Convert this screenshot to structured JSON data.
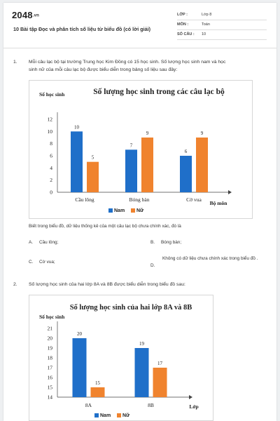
{
  "header": {
    "logo": "2048",
    "logo_suffix": ".vn",
    "title": "10 Bài tập Đọc và phân tích số liệu từ biểu đồ (có lời giải)",
    "meta": [
      {
        "key": "LỚP :",
        "value": "Lớp 8"
      },
      {
        "key": "MÔN :",
        "value": "Toán"
      },
      {
        "key": "SỐ CÂU :",
        "value": "10"
      }
    ]
  },
  "questions": [
    {
      "number": "1.",
      "text_lines": [
        "Mỗi câu lạc bộ tại trường Trung học Kim Đồng có 15 học sinh. Số lượng học sinh nam và học",
        "sinh nữ của mỗi câu lạc bộ được biểu diễn trong bảng số liệu sau đây:"
      ],
      "prompt": "Biết trong biểu đồ, dữ liệu thống kê của một câu lạc bộ chưa chính xác, đó là",
      "options": [
        {
          "label": "A.",
          "text": "Cầu lông;"
        },
        {
          "label": "B.",
          "text": "Bóng bàn;"
        },
        {
          "label": "C.",
          "text": "Cờ vua;"
        },
        {
          "label": "D.",
          "text": "Không có dữ liệu chưa chính xác trong biểu đồ ."
        }
      ]
    },
    {
      "number": "2.",
      "text_lines": [
        "Số lượng học sinh của hai lớp 8A và 8B được biểu diễn trong biểu đồ sau:"
      ]
    }
  ],
  "chart_data": [
    {
      "type": "bar",
      "title": "Số lượng học sinh trong các câu lạc bộ",
      "ylabel": "Số học sinh",
      "xlabel": "Bộ môn",
      "categories": [
        "Cầu lông",
        "Bóng bàn",
        "Cờ vua"
      ],
      "series": [
        {
          "name": "Nam",
          "values": [
            10,
            7,
            6
          ],
          "color": "#1f6fc9"
        },
        {
          "name": "Nữ",
          "values": [
            5,
            9,
            9
          ],
          "color": "#f0832e"
        }
      ],
      "ylim": [
        0,
        12
      ],
      "yticks": [
        0,
        2,
        4,
        6,
        8,
        10,
        12
      ],
      "legend": "bottom",
      "grid": false
    },
    {
      "type": "bar",
      "title": "Số lượng học sinh của hai lớp 8A và 8B",
      "ylabel": "Số học sinh",
      "xlabel": "Lớp",
      "categories": [
        "8A",
        "8B"
      ],
      "series": [
        {
          "name": "Nam",
          "values": [
            20,
            19
          ],
          "color": "#1f6fc9"
        },
        {
          "name": "Nữ",
          "values": [
            15,
            17
          ],
          "color": "#f0832e"
        }
      ],
      "ylim": [
        14,
        21
      ],
      "yticks": [
        14,
        15,
        16,
        17,
        18,
        19,
        20,
        21
      ],
      "legend": "bottom",
      "grid": false
    }
  ]
}
